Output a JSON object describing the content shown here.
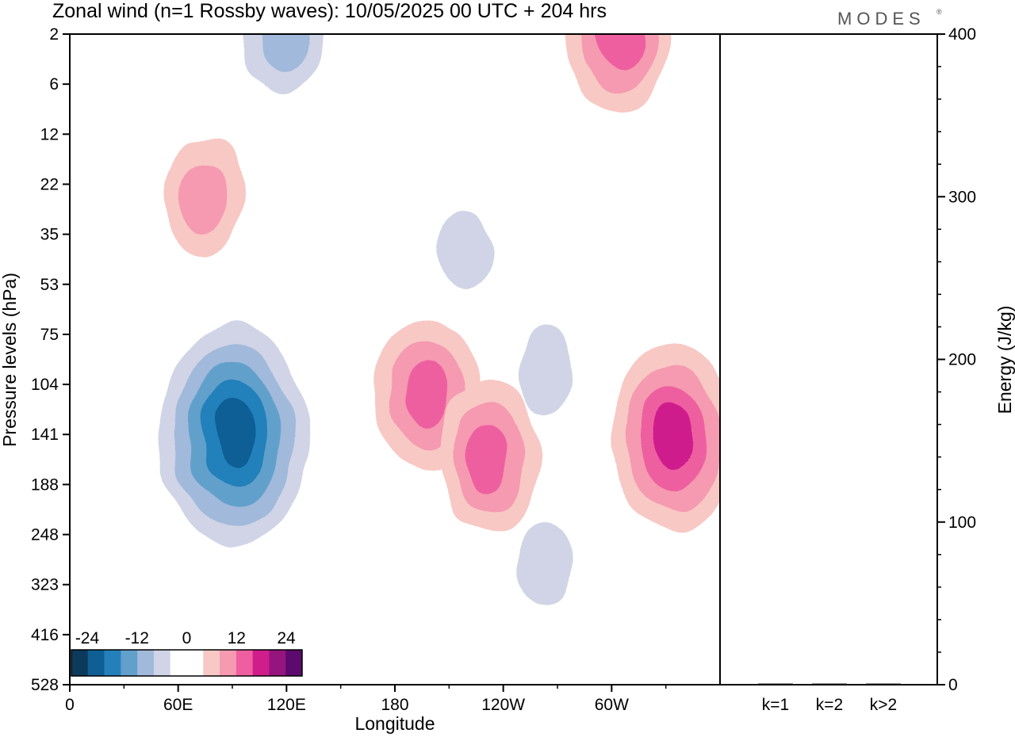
{
  "header": {
    "title": "Zonal wind (n=1 Rossby waves):  10/05/2025  00 UTC  + 204 hrs",
    "brand": "MODES",
    "brand_mark": "®"
  },
  "colors": {
    "neg": [
      "#0d3a5c",
      "#0f5f95",
      "#2480bb",
      "#62a0cc",
      "#a1b9da",
      "#d0d4e6"
    ],
    "zero": "#ffffff",
    "pos": [
      "#f8c8c4",
      "#f59ab0",
      "#ee5ea0",
      "#cf1d8c",
      "#96147d",
      "#5c0a6e"
    ]
  },
  "chart_data": [
    {
      "type": "heatmap",
      "title": "Zonal wind (n=1 Rossby waves):  10/05/2025  00 UTC  + 204 hrs",
      "xlabel": "Longitude",
      "ylabel": "Pressure levels (hPa)",
      "x_ticks": [
        "0",
        "60E",
        "120E",
        "180",
        "120W",
        "60W"
      ],
      "x_tick_degrees": [
        0,
        60,
        120,
        180,
        240,
        300
      ],
      "xlim_degrees": [
        0,
        360
      ],
      "y_ticks": [
        "2",
        "6",
        "12",
        "22",
        "35",
        "53",
        "75",
        "104",
        "141",
        "188",
        "248",
        "323",
        "416",
        "528"
      ],
      "color_levels": [
        "-24",
        "-12",
        "0",
        "12",
        "24"
      ],
      "features": [
        {
          "sign": "negative",
          "peak": -20,
          "center": {
            "lon": 91,
            "pressure": 141
          }
        },
        {
          "sign": "negative",
          "peak": -8,
          "center": {
            "lon": 118,
            "pressure": 2
          }
        },
        {
          "sign": "negative",
          "peak": -4,
          "center": {
            "lon": 219,
            "pressure": 40
          }
        },
        {
          "sign": "negative",
          "peak": -4,
          "center": {
            "lon": 263,
            "pressure": 95
          }
        },
        {
          "sign": "negative",
          "peak": -4,
          "center": {
            "lon": 263,
            "pressure": 290
          }
        },
        {
          "sign": "positive",
          "peak": 8,
          "center": {
            "lon": 74,
            "pressure": 25
          }
        },
        {
          "sign": "positive",
          "peak": 12,
          "center": {
            "lon": 198,
            "pressure": 110
          }
        },
        {
          "sign": "positive",
          "peak": 12,
          "center": {
            "lon": 232,
            "pressure": 160
          }
        },
        {
          "sign": "positive",
          "peak": 16,
          "center": {
            "lon": 334,
            "pressure": 141
          }
        },
        {
          "sign": "positive",
          "peak": 12,
          "center": {
            "lon": 304,
            "pressure": 2
          }
        }
      ]
    },
    {
      "type": "bar",
      "categories": [
        "k=1",
        "k=2",
        "k>2"
      ],
      "values": [
        0.5,
        0.5,
        0.5
      ],
      "ylabel": "Energy (J/kg)",
      "ylim": [
        0,
        400
      ],
      "y_ticks": [
        "0",
        "100",
        "200",
        "300",
        "400"
      ]
    }
  ]
}
